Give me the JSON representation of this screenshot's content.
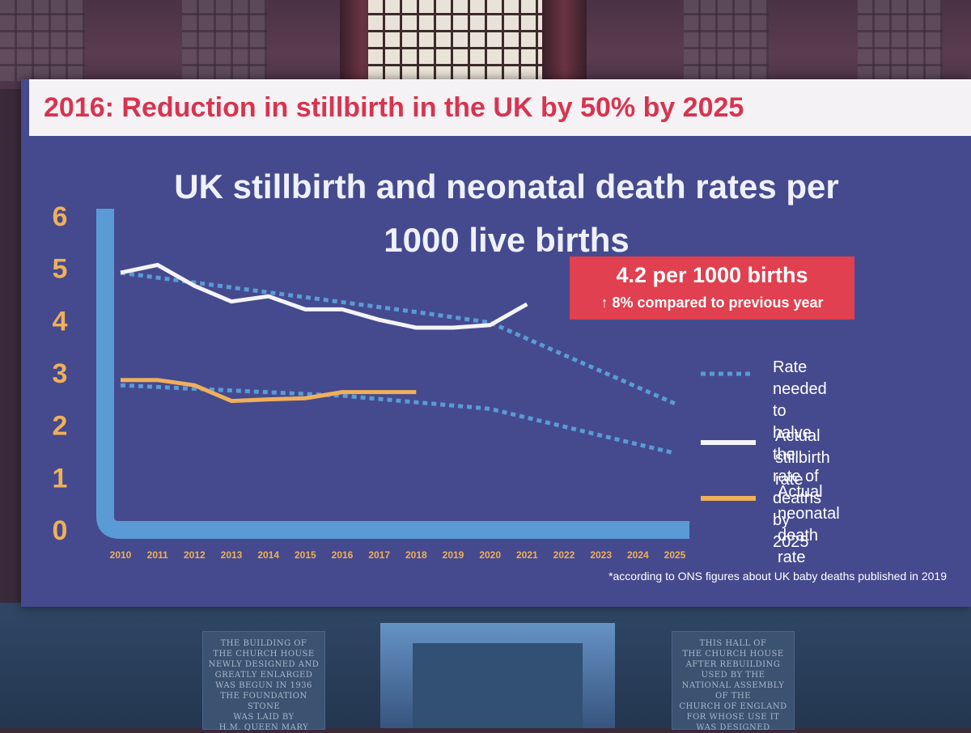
{
  "banner": {
    "text": "2016: Reduction in stillbirth in the UK by 50% by 2025"
  },
  "callout": {
    "main": "4.2 per 1000 births",
    "sub": "↑ 8% compared to previous year"
  },
  "footnote": "*according to ONS figures about UK baby deaths published in 2019",
  "room_text": {
    "left_stone": "THE BUILDING OF\nTHE CHURCH HOUSE\nNEWLY DESIGNED AND\nGREATLY ENLARGED\nWAS BEGUN IN 1936\nTHE FOUNDATION STONE\nWAS LAID BY\nH.M. QUEEN MARY",
    "right_stone": "THIS HALL OF\nTHE CHURCH HOUSE\nAFTER REBUILDING\nUSED BY THE\nNATIONAL ASSEMBLY\nOF THE\nCHURCH OF ENGLAND\nFOR WHOSE USE IT\nWAS DESIGNED"
  },
  "colors": {
    "slide_bg": "#454a8e",
    "axis": "#5b9bd5",
    "tick_y": "#f0b05a",
    "tick_x": "#f0b05a",
    "stillbirth": "#f4f4f8",
    "neonatal": "#f0b05a",
    "target": "#5b9bd5",
    "banner_text": "#d8344f",
    "callout_bg": "#e0404f"
  },
  "chart_data": {
    "type": "line",
    "title": "UK stillbirth and neonatal death rates per 1000 live births",
    "x": [
      "2010",
      "2011",
      "2012",
      "2013",
      "2014",
      "2015",
      "2016",
      "2017",
      "2018",
      "2019",
      "2020",
      "2021",
      "2022",
      "2023",
      "2024",
      "2025"
    ],
    "ylim": [
      0,
      6
    ],
    "yticks": [
      "0",
      "1",
      "2",
      "3",
      "4",
      "5",
      "6"
    ],
    "grid": false,
    "legend_placement": "right",
    "series": [
      {
        "name": "Rate needed to halve the rate of deaths by 2025",
        "style": "dotted",
        "color_key": "target",
        "points": [
          [
            2010,
            4.9
          ],
          [
            2018,
            4.15
          ],
          [
            2020,
            3.95
          ],
          [
            2025,
            2.4
          ]
        ]
      },
      {
        "name": "Rate needed to halve the rate of deaths by 2025",
        "style": "dotted",
        "color_key": "target",
        "points": [
          [
            2010,
            2.75
          ],
          [
            2016,
            2.55
          ],
          [
            2020,
            2.3
          ],
          [
            2025,
            1.45
          ]
        ]
      },
      {
        "name": "Actual stillbirth rate",
        "style": "solid",
        "color_key": "stillbirth",
        "points": [
          [
            2010,
            4.9
          ],
          [
            2011,
            5.05
          ],
          [
            2012,
            4.65
          ],
          [
            2013,
            4.35
          ],
          [
            2014,
            4.45
          ],
          [
            2015,
            4.2
          ],
          [
            2016,
            4.2
          ],
          [
            2017,
            4.0
          ],
          [
            2018,
            3.85
          ],
          [
            2019,
            3.85
          ],
          [
            2020,
            3.9
          ],
          [
            2021,
            4.3
          ]
        ]
      },
      {
        "name": "Actual neonatal death rate",
        "style": "solid",
        "color_key": "neonatal",
        "points": [
          [
            2010,
            2.85
          ],
          [
            2011,
            2.85
          ],
          [
            2012,
            2.75
          ],
          [
            2013,
            2.45
          ],
          [
            2014,
            2.48
          ],
          [
            2015,
            2.5
          ],
          [
            2016,
            2.62
          ],
          [
            2017,
            2.62
          ],
          [
            2018,
            2.62
          ]
        ]
      }
    ],
    "legend": [
      {
        "label": "Rate needed to\nhalve the rate of\ndeaths by 2025",
        "style": "dotted",
        "color_key": "target"
      },
      {
        "label": "Actual\nstillbirth rate",
        "style": "solid",
        "color_key": "stillbirth"
      },
      {
        "label": "Actual\nneonatal death rate",
        "style": "solid",
        "color_key": "neonatal"
      }
    ]
  }
}
